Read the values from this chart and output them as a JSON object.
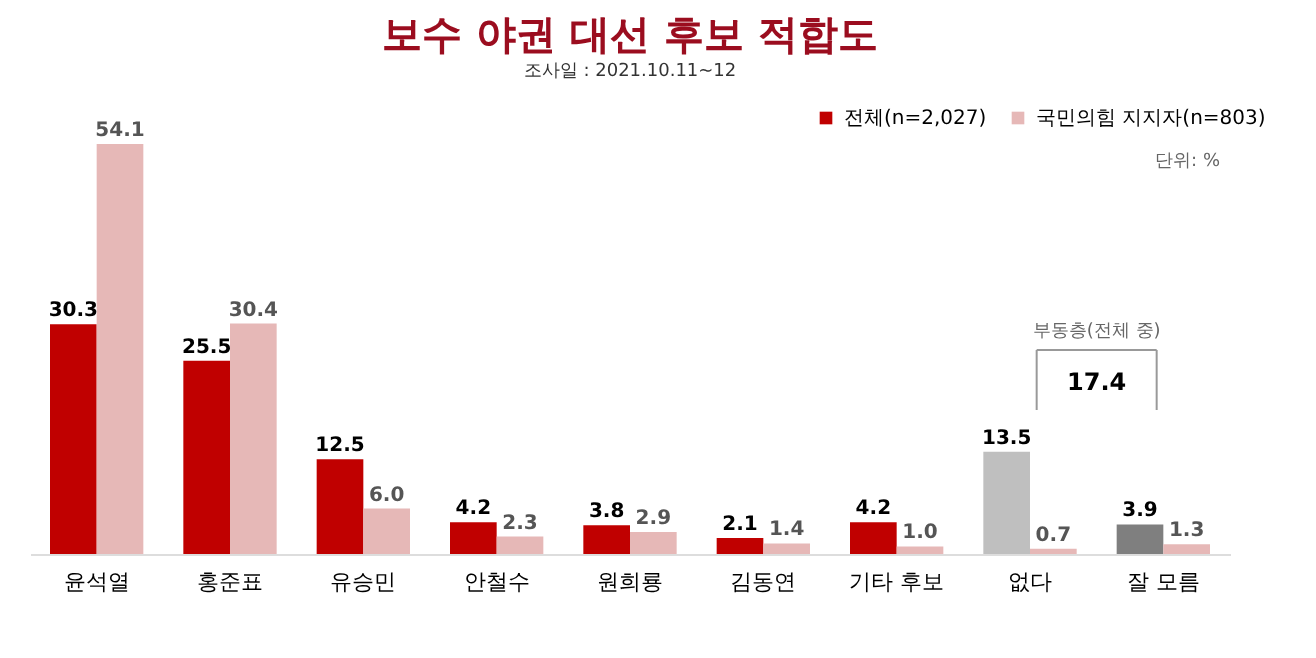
{
  "chart_data": {
    "type": "bar",
    "title": "보수 야권 대선 후보 적합도",
    "subtitle": "조사일 : 2021.10.11~12",
    "categories": [
      "윤석열",
      "홍준표",
      "유승민",
      "안철수",
      "원희룡",
      "김동연",
      "기타 후보",
      "없다",
      "잘 모름"
    ],
    "series": [
      {
        "name": "전체(n=2,027)",
        "color": "#c00000",
        "colors": [
          "#c00000",
          "#c00000",
          "#c00000",
          "#c00000",
          "#c00000",
          "#c00000",
          "#c00000",
          "#bfbfbf",
          "#7f7f7f"
        ],
        "values": [
          30.3,
          25.5,
          12.5,
          4.2,
          3.8,
          2.1,
          4.2,
          13.5,
          3.9
        ],
        "value_labels": [
          "30.3",
          "25.5",
          "12.5",
          "4.2",
          "3.8",
          "2.1",
          "4.2",
          "13.5",
          "3.9"
        ]
      },
      {
        "name": "국민의힘 지지자(n=803)",
        "color": "#e6b8b7",
        "values": [
          54.1,
          30.4,
          6.0,
          2.3,
          2.9,
          1.4,
          1.0,
          0.7,
          1.3
        ],
        "value_labels": [
          "54.1",
          "30.4",
          "6.0",
          "2.3",
          "2.9",
          "1.4",
          "1.0",
          "0.7",
          "1.3"
        ]
      }
    ],
    "legend": "top right",
    "tick_labels": "x",
    "grid": false,
    "annotations": [
      "단위: %",
      "부동층(전체 중)",
      "17.4"
    ]
  }
}
